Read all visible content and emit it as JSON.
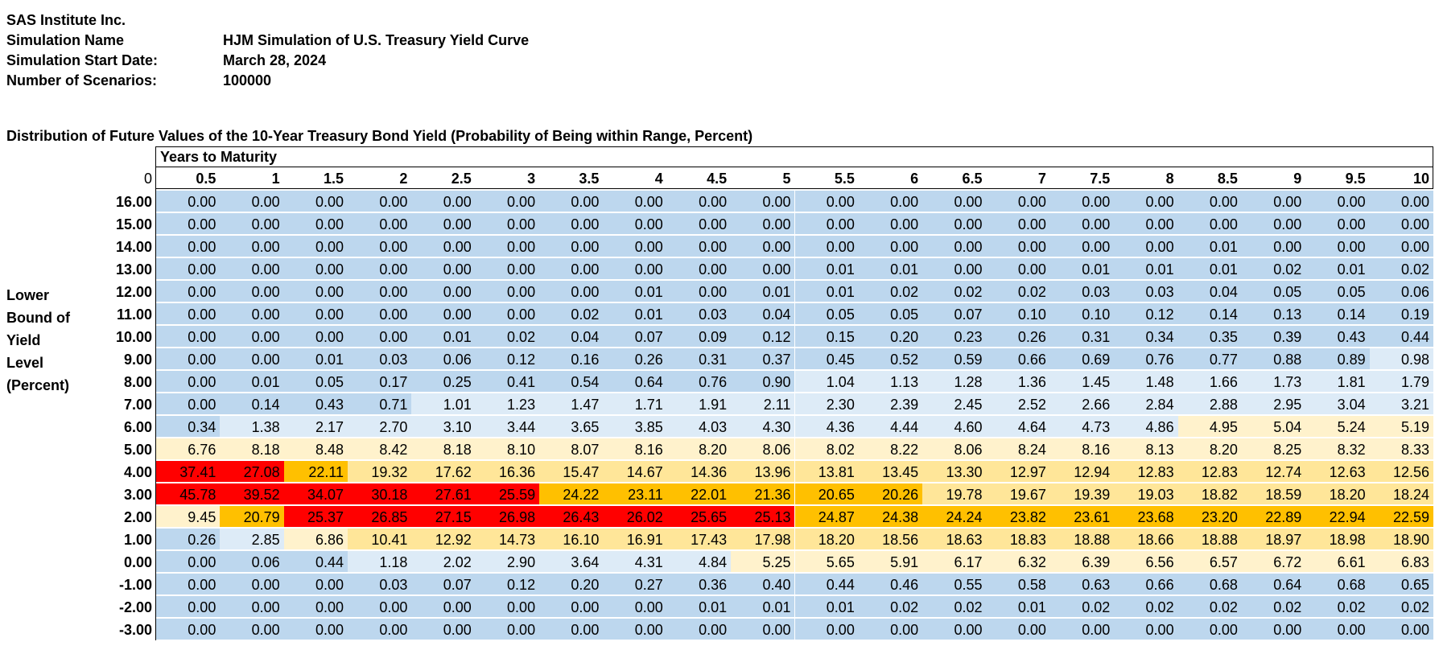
{
  "header": {
    "org": "SAS Institute Inc.",
    "rows": [
      {
        "label": "Simulation Name",
        "value": "HJM Simulation of U.S. Treasury Yield Curve"
      },
      {
        "label": "Simulation Start Date:",
        "value": "March 28, 2024"
      },
      {
        "label": "Number of Scenarios:",
        "value": "100000"
      }
    ]
  },
  "table": {
    "title": "Distribution of Future Values of the 10-Year Treasury Bond Yield (Probability of Being within Range, Percent)",
    "column_group_label": "Years to Maturity",
    "corner_label": "0",
    "row_axis_label": [
      "Lower",
      "Bound of",
      "Yield",
      "Level",
      "(Percent)"
    ],
    "columns": [
      "0.5",
      "1",
      "1.5",
      "2",
      "2.5",
      "3",
      "3.5",
      "4",
      "4.5",
      "5",
      "5.5",
      "6",
      "6.5",
      "7",
      "7.5",
      "8",
      "8.5",
      "9",
      "9.5",
      "10"
    ],
    "rows": [
      {
        "label": "16.00",
        "values": [
          "0.00",
          "0.00",
          "0.00",
          "0.00",
          "0.00",
          "0.00",
          "0.00",
          "0.00",
          "0.00",
          "0.00",
          "0.00",
          "0.00",
          "0.00",
          "0.00",
          "0.00",
          "0.00",
          "0.00",
          "0.00",
          "0.00",
          "0.00"
        ]
      },
      {
        "label": "15.00",
        "values": [
          "0.00",
          "0.00",
          "0.00",
          "0.00",
          "0.00",
          "0.00",
          "0.00",
          "0.00",
          "0.00",
          "0.00",
          "0.00",
          "0.00",
          "0.00",
          "0.00",
          "0.00",
          "0.00",
          "0.00",
          "0.00",
          "0.00",
          "0.00"
        ]
      },
      {
        "label": "14.00",
        "values": [
          "0.00",
          "0.00",
          "0.00",
          "0.00",
          "0.00",
          "0.00",
          "0.00",
          "0.00",
          "0.00",
          "0.00",
          "0.00",
          "0.00",
          "0.00",
          "0.00",
          "0.00",
          "0.00",
          "0.01",
          "0.00",
          "0.00",
          "0.00"
        ]
      },
      {
        "label": "13.00",
        "values": [
          "0.00",
          "0.00",
          "0.00",
          "0.00",
          "0.00",
          "0.00",
          "0.00",
          "0.00",
          "0.00",
          "0.00",
          "0.01",
          "0.01",
          "0.00",
          "0.00",
          "0.01",
          "0.01",
          "0.01",
          "0.02",
          "0.01",
          "0.02"
        ]
      },
      {
        "label": "12.00",
        "values": [
          "0.00",
          "0.00",
          "0.00",
          "0.00",
          "0.00",
          "0.00",
          "0.00",
          "0.01",
          "0.00",
          "0.01",
          "0.01",
          "0.02",
          "0.02",
          "0.02",
          "0.03",
          "0.03",
          "0.04",
          "0.05",
          "0.05",
          "0.06"
        ]
      },
      {
        "label": "11.00",
        "values": [
          "0.00",
          "0.00",
          "0.00",
          "0.00",
          "0.00",
          "0.00",
          "0.02",
          "0.01",
          "0.03",
          "0.04",
          "0.05",
          "0.05",
          "0.07",
          "0.10",
          "0.10",
          "0.12",
          "0.14",
          "0.13",
          "0.14",
          "0.19"
        ]
      },
      {
        "label": "10.00",
        "values": [
          "0.00",
          "0.00",
          "0.00",
          "0.00",
          "0.01",
          "0.02",
          "0.04",
          "0.07",
          "0.09",
          "0.12",
          "0.15",
          "0.20",
          "0.23",
          "0.26",
          "0.31",
          "0.34",
          "0.35",
          "0.39",
          "0.43",
          "0.44"
        ]
      },
      {
        "label": "9.00",
        "values": [
          "0.00",
          "0.00",
          "0.01",
          "0.03",
          "0.06",
          "0.12",
          "0.16",
          "0.26",
          "0.31",
          "0.37",
          "0.45",
          "0.52",
          "0.59",
          "0.66",
          "0.69",
          "0.76",
          "0.77",
          "0.88",
          "0.89",
          "0.98"
        ]
      },
      {
        "label": "8.00",
        "values": [
          "0.00",
          "0.01",
          "0.05",
          "0.17",
          "0.25",
          "0.41",
          "0.54",
          "0.64",
          "0.76",
          "0.90",
          "1.04",
          "1.13",
          "1.28",
          "1.36",
          "1.45",
          "1.48",
          "1.66",
          "1.73",
          "1.81",
          "1.79"
        ]
      },
      {
        "label": "7.00",
        "values": [
          "0.00",
          "0.14",
          "0.43",
          "0.71",
          "1.01",
          "1.23",
          "1.47",
          "1.71",
          "1.91",
          "2.11",
          "2.30",
          "2.39",
          "2.45",
          "2.52",
          "2.66",
          "2.84",
          "2.88",
          "2.95",
          "3.04",
          "3.21"
        ]
      },
      {
        "label": "6.00",
        "values": [
          "0.34",
          "1.38",
          "2.17",
          "2.70",
          "3.10",
          "3.44",
          "3.65",
          "3.85",
          "4.03",
          "4.30",
          "4.36",
          "4.44",
          "4.60",
          "4.64",
          "4.73",
          "4.86",
          "4.95",
          "5.04",
          "5.24",
          "5.19"
        ]
      },
      {
        "label": "5.00",
        "values": [
          "6.76",
          "8.18",
          "8.48",
          "8.42",
          "8.18",
          "8.10",
          "8.07",
          "8.16",
          "8.20",
          "8.06",
          "8.02",
          "8.22",
          "8.06",
          "8.24",
          "8.16",
          "8.13",
          "8.20",
          "8.25",
          "8.32",
          "8.33"
        ]
      },
      {
        "label": "4.00",
        "values": [
          "37.41",
          "27.08",
          "22.11",
          "19.32",
          "17.62",
          "16.36",
          "15.47",
          "14.67",
          "14.36",
          "13.96",
          "13.81",
          "13.45",
          "13.30",
          "12.97",
          "12.94",
          "12.83",
          "12.83",
          "12.74",
          "12.63",
          "12.56"
        ]
      },
      {
        "label": "3.00",
        "values": [
          "45.78",
          "39.52",
          "34.07",
          "30.18",
          "27.61",
          "25.59",
          "24.22",
          "23.11",
          "22.01",
          "21.36",
          "20.65",
          "20.26",
          "19.78",
          "19.67",
          "19.39",
          "19.03",
          "18.82",
          "18.59",
          "18.20",
          "18.24"
        ]
      },
      {
        "label": "2.00",
        "values": [
          "9.45",
          "20.79",
          "25.37",
          "26.85",
          "27.15",
          "26.98",
          "26.43",
          "26.02",
          "25.65",
          "25.13",
          "24.87",
          "24.38",
          "24.24",
          "23.82",
          "23.61",
          "23.68",
          "23.20",
          "22.89",
          "22.94",
          "22.59"
        ]
      },
      {
        "label": "1.00",
        "values": [
          "0.26",
          "2.85",
          "6.86",
          "10.41",
          "12.92",
          "14.73",
          "16.10",
          "16.91",
          "17.43",
          "17.98",
          "18.20",
          "18.56",
          "18.63",
          "18.83",
          "18.88",
          "18.66",
          "18.88",
          "18.97",
          "18.98",
          "18.90"
        ]
      },
      {
        "label": "0.00",
        "values": [
          "0.00",
          "0.06",
          "0.44",
          "1.18",
          "2.02",
          "2.90",
          "3.64",
          "4.31",
          "4.84",
          "5.25",
          "5.65",
          "5.91",
          "6.17",
          "6.32",
          "6.39",
          "6.56",
          "6.57",
          "6.72",
          "6.61",
          "6.83"
        ]
      },
      {
        "label": "-1.00",
        "values": [
          "0.00",
          "0.00",
          "0.00",
          "0.03",
          "0.07",
          "0.12",
          "0.20",
          "0.27",
          "0.36",
          "0.40",
          "0.44",
          "0.46",
          "0.55",
          "0.58",
          "0.63",
          "0.66",
          "0.68",
          "0.64",
          "0.68",
          "0.65"
        ]
      },
      {
        "label": "-2.00",
        "values": [
          "0.00",
          "0.00",
          "0.00",
          "0.00",
          "0.00",
          "0.00",
          "0.00",
          "0.00",
          "0.01",
          "0.01",
          "0.01",
          "0.02",
          "0.02",
          "0.01",
          "0.02",
          "0.02",
          "0.02",
          "0.02",
          "0.02",
          "0.02"
        ]
      },
      {
        "label": "-3.00",
        "values": [
          "0.00",
          "0.00",
          "0.00",
          "0.00",
          "0.00",
          "0.00",
          "0.00",
          "0.00",
          "0.00",
          "0.00",
          "0.00",
          "0.00",
          "0.00",
          "0.00",
          "0.00",
          "0.00",
          "0.00",
          "0.00",
          "0.00",
          "0.00"
        ]
      }
    ],
    "color_scale": {
      "white": "#ffffff",
      "blue": "#bdd7ee",
      "light_blue": "#ddebf7",
      "pale_yellow": "#fff2cc",
      "light_orange": "#ffe699",
      "orange": "#ffc000",
      "red": "#ff0000"
    }
  }
}
